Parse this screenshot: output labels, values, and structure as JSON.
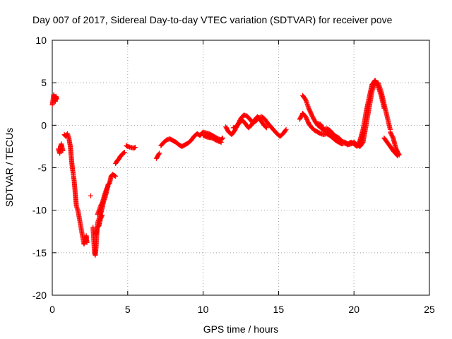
{
  "chart_data": {
    "type": "scatter",
    "title": "Day 007 of 2017, Sidereal Day-to-day VTEC variation (SDTVAR) for receiver pove",
    "xlabel": "GPS time / hours",
    "ylabel": "SDTVAR / TECUs",
    "xlim": [
      0,
      25
    ],
    "ylim": [
      -20,
      10
    ],
    "xticks": [
      "0",
      "5",
      "10",
      "15",
      "20",
      "25"
    ],
    "yticks": [
      "10",
      "5",
      "0",
      "-5",
      "-10",
      "-15",
      "-20"
    ],
    "grid": true,
    "marker": "plus",
    "series": [
      {
        "name": "SDTVAR",
        "color": "#ff0000",
        "segments": [
          [
            [
              0.0,
              2.4
            ],
            [
              0.05,
              3.0
            ],
            [
              0.1,
              3.6
            ],
            [
              0.15,
              3.2
            ],
            [
              0.2,
              2.8
            ],
            [
              0.25,
              3.4
            ],
            [
              0.3,
              3.1
            ]
          ],
          [
            [
              0.4,
              -2.8
            ],
            [
              0.5,
              -3.3
            ],
            [
              0.55,
              -2.5
            ],
            [
              0.6,
              -2.2
            ],
            [
              0.7,
              -3.0
            ]
          ],
          [
            [
              0.8,
              -1.1
            ],
            [
              0.9,
              -1.3
            ],
            [
              1.0,
              -1.0
            ],
            [
              1.1,
              -1.5
            ],
            [
              1.2,
              -2.5
            ],
            [
              1.25,
              -3.5
            ],
            [
              1.3,
              -4.5
            ],
            [
              1.35,
              -5.2
            ],
            [
              1.45,
              -6.5
            ],
            [
              1.5,
              -7.5
            ],
            [
              1.55,
              -8.5
            ],
            [
              1.6,
              -9.5
            ],
            [
              1.7,
              -10.0
            ],
            [
              1.8,
              -11.0
            ],
            [
              1.9,
              -12.0
            ],
            [
              2.0,
              -13.0
            ],
            [
              2.1,
              -14.0
            ],
            [
              2.2,
              -13.5
            ],
            [
              2.25,
              -13.0
            ],
            [
              2.3,
              -13.8
            ]
          ],
          [
            [
              2.55,
              -8.3
            ]
          ],
          [
            [
              2.7,
              -12.0
            ],
            [
              2.75,
              -13.5
            ],
            [
              2.8,
              -15.0
            ],
            [
              2.85,
              -15.3
            ],
            [
              2.9,
              -14.5
            ],
            [
              2.95,
              -13.0
            ],
            [
              3.0,
              -11.5
            ],
            [
              3.1,
              -11.0
            ],
            [
              3.2,
              -10.5
            ],
            [
              3.3,
              -9.8
            ],
            [
              3.4,
              -9.0
            ],
            [
              3.5,
              -8.5
            ],
            [
              3.6,
              -7.8
            ],
            [
              3.7,
              -7.0
            ],
            [
              3.8,
              -6.8
            ],
            [
              3.9,
              -6.0
            ],
            [
              4.0,
              -5.8
            ],
            [
              4.1,
              -5.9
            ],
            [
              4.2,
              -6.0
            ]
          ],
          [
            [
              3.0,
              -10.5
            ],
            [
              3.1,
              -10.0
            ],
            [
              3.2,
              -9.5
            ],
            [
              3.3,
              -9.2
            ],
            [
              3.4,
              -8.6
            ],
            [
              3.5,
              -8.0
            ],
            [
              3.6,
              -7.5
            ],
            [
              3.7,
              -7.2
            ]
          ],
          [
            [
              2.9,
              -12.8
            ],
            [
              3.0,
              -12.0
            ],
            [
              3.1,
              -11.8
            ],
            [
              3.2,
              -11.0
            ],
            [
              3.3,
              -10.6
            ]
          ],
          [
            [
              4.2,
              -4.5
            ],
            [
              4.3,
              -4.2
            ],
            [
              4.4,
              -4.0
            ],
            [
              4.5,
              -3.7
            ],
            [
              4.6,
              -3.5
            ],
            [
              4.7,
              -3.3
            ],
            [
              4.8,
              -3.2
            ]
          ],
          [
            [
              4.9,
              -2.4
            ],
            [
              5.0,
              -2.5
            ],
            [
              5.2,
              -2.6
            ],
            [
              5.4,
              -2.7
            ],
            [
              5.5,
              -2.6
            ]
          ],
          [
            [
              6.9,
              -3.9
            ],
            [
              7.0,
              -3.6
            ],
            [
              7.1,
              -3.3
            ]
          ],
          [
            [
              7.2,
              -2.4
            ],
            [
              7.4,
              -2.0
            ],
            [
              7.6,
              -1.7
            ],
            [
              7.8,
              -1.6
            ],
            [
              8.0,
              -1.8
            ],
            [
              8.2,
              -2.0
            ],
            [
              8.4,
              -2.3
            ],
            [
              8.6,
              -2.5
            ],
            [
              8.8,
              -2.3
            ],
            [
              9.0,
              -2.1
            ],
            [
              9.2,
              -1.8
            ],
            [
              9.4,
              -1.3
            ],
            [
              9.6,
              -1.0
            ],
            [
              9.8,
              -1.2
            ],
            [
              10.0,
              -0.8
            ],
            [
              10.2,
              -0.9
            ],
            [
              10.4,
              -1.0
            ],
            [
              10.6,
              -1.2
            ],
            [
              10.8,
              -1.4
            ],
            [
              11.0,
              -1.6
            ],
            [
              11.2,
              -1.7
            ],
            [
              11.3,
              -1.5
            ]
          ],
          [
            [
              10.0,
              -1.2
            ],
            [
              10.3,
              -1.4
            ],
            [
              10.6,
              -1.5
            ],
            [
              10.9,
              -1.8
            ],
            [
              11.2,
              -2.0
            ]
          ],
          [
            [
              11.5,
              -0.2
            ],
            [
              11.7,
              -0.8
            ],
            [
              11.9,
              -1.1
            ],
            [
              12.1,
              -0.6
            ],
            [
              12.3,
              0.1
            ],
            [
              12.5,
              0.8
            ],
            [
              12.7,
              1.2
            ],
            [
              12.9,
              1.1
            ],
            [
              13.1,
              0.7
            ],
            [
              13.3,
              0.3
            ],
            [
              13.5,
              0.5
            ],
            [
              13.7,
              0.9
            ],
            [
              13.9,
              1.0
            ],
            [
              14.1,
              0.7
            ],
            [
              14.3,
              0.2
            ],
            [
              14.5,
              -0.2
            ],
            [
              14.7,
              -0.6
            ],
            [
              14.9,
              -1.0
            ],
            [
              15.1,
              -1.3
            ],
            [
              15.3,
              -1.0
            ],
            [
              15.5,
              -0.5
            ]
          ],
          [
            [
              12.0,
              -0.3
            ],
            [
              12.2,
              -0.2
            ],
            [
              12.4,
              0.3
            ],
            [
              12.6,
              0.6
            ],
            [
              12.8,
              0.2
            ],
            [
              13.0,
              -0.3
            ],
            [
              13.2,
              0.0
            ],
            [
              13.4,
              0.6
            ],
            [
              13.6,
              1.0
            ],
            [
              13.8,
              0.6
            ],
            [
              14.0,
              0.1
            ],
            [
              14.2,
              -0.3
            ]
          ],
          [
            [
              16.4,
              0.7
            ],
            [
              16.6,
              1.4
            ],
            [
              16.8,
              1.0
            ],
            [
              17.0,
              0.2
            ],
            [
              17.2,
              -0.3
            ],
            [
              17.4,
              -0.6
            ],
            [
              17.6,
              -0.8
            ],
            [
              17.8,
              -1.0
            ],
            [
              18.0,
              -1.1
            ],
            [
              18.2,
              -1.0
            ],
            [
              18.4,
              -1.2
            ],
            [
              18.6,
              -1.5
            ],
            [
              18.8,
              -1.8
            ],
            [
              19.0,
              -2.0
            ],
            [
              19.2,
              -2.2
            ],
            [
              19.4,
              -2.1
            ],
            [
              19.6,
              -2.3
            ],
            [
              19.8,
              -2.2
            ],
            [
              20.0,
              -2.0
            ],
            [
              20.2,
              -2.3
            ],
            [
              20.4,
              -2.5
            ],
            [
              20.6,
              -2.0
            ],
            [
              20.8,
              0.0
            ],
            [
              21.0,
              2.0
            ],
            [
              21.2,
              4.0
            ],
            [
              21.4,
              5.0
            ],
            [
              21.6,
              5.0
            ],
            [
              21.8,
              4.0
            ],
            [
              22.0,
              2.5
            ],
            [
              22.2,
              1.0
            ],
            [
              22.4,
              -0.5
            ]
          ],
          [
            [
              16.6,
              3.5
            ],
            [
              16.8,
              3.0
            ],
            [
              17.0,
              2.0
            ],
            [
              17.2,
              1.2
            ],
            [
              17.4,
              0.5
            ],
            [
              17.6,
              0.0
            ],
            [
              17.8,
              -0.3
            ],
            [
              18.0,
              -0.5
            ],
            [
              18.2,
              -0.4
            ],
            [
              18.4,
              -0.6
            ],
            [
              18.6,
              -1.0
            ],
            [
              18.8,
              -1.3
            ],
            [
              19.0,
              -1.5
            ],
            [
              19.2,
              -1.9
            ],
            [
              19.4,
              -2.0
            ],
            [
              19.6,
              -2.2
            ],
            [
              19.8,
              -2.0
            ],
            [
              20.0,
              -2.2
            ],
            [
              20.2,
              -2.5
            ],
            [
              20.4,
              -1.8
            ],
            [
              20.6,
              -0.5
            ],
            [
              20.8,
              1.5
            ],
            [
              21.0,
              3.2
            ],
            [
              21.2,
              4.8
            ],
            [
              21.4,
              5.3
            ],
            [
              21.6,
              4.6
            ],
            [
              21.8,
              3.5
            ],
            [
              22.0,
              2.0
            ]
          ],
          [
            [
              17.6,
              0.2
            ],
            [
              17.8,
              0.1
            ],
            [
              18.0,
              -0.7
            ],
            [
              18.2,
              -0.8
            ],
            [
              18.4,
              -1.1
            ],
            [
              18.6,
              -1.4
            ]
          ],
          [
            [
              22.0,
              -1.5
            ],
            [
              22.2,
              -2.0
            ],
            [
              22.4,
              -2.5
            ],
            [
              22.6,
              -3.0
            ],
            [
              22.8,
              -3.4
            ],
            [
              22.9,
              -3.6
            ]
          ],
          [
            [
              22.4,
              -0.8
            ],
            [
              22.6,
              -1.5
            ],
            [
              22.7,
              -2.2
            ],
            [
              22.8,
              -2.8
            ],
            [
              22.9,
              -3.2
            ],
            [
              23.0,
              -3.5
            ]
          ]
        ]
      }
    ]
  }
}
